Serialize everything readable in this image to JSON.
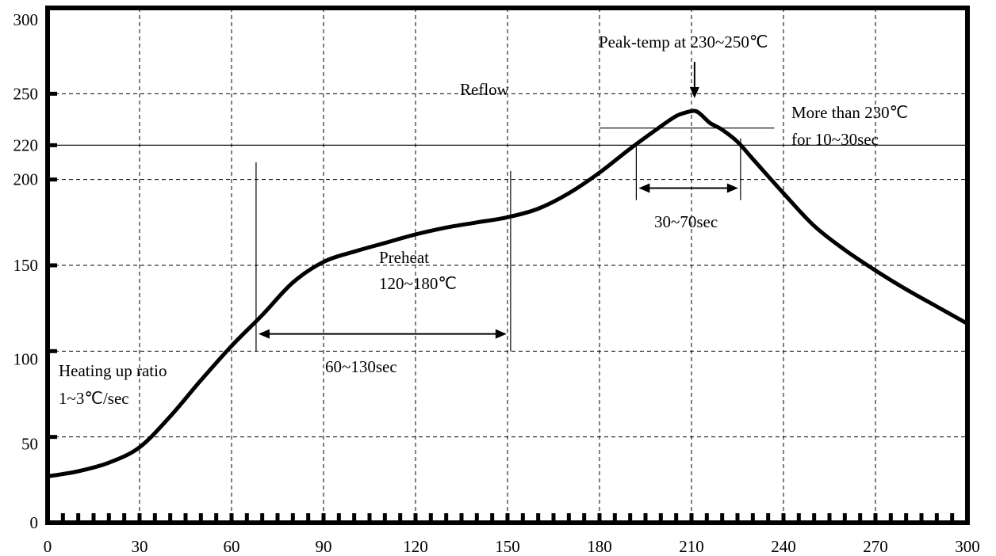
{
  "chart_data": {
    "type": "line",
    "title": "",
    "xlabel": "",
    "ylabel": "",
    "xlim": [
      0,
      300
    ],
    "ylim": [
      0,
      300
    ],
    "x_ticks": [
      0,
      30,
      60,
      90,
      120,
      150,
      180,
      210,
      240,
      270,
      300
    ],
    "y_ticks": [
      0,
      50,
      100,
      150,
      200,
      220,
      250,
      300
    ],
    "grid": true,
    "series": [
      {
        "x": [
          0,
          10,
          20,
          30,
          40,
          50,
          60,
          70,
          80,
          90,
          100,
          110,
          120,
          130,
          140,
          150,
          160,
          170,
          180,
          190,
          200,
          205,
          208,
          211,
          213,
          216,
          220,
          225,
          230,
          240,
          250,
          260,
          270,
          280,
          290,
          300
        ],
        "y": [
          27,
          30,
          35,
          44,
          62,
          83,
          103,
          121,
          140,
          152,
          158,
          163,
          168,
          172,
          175,
          178,
          183,
          192,
          204,
          218,
          231,
          237,
          239,
          240,
          238,
          233,
          229,
          222,
          212,
          192,
          173,
          159,
          147,
          136,
          126,
          116
        ]
      }
    ],
    "reference_lines": {
      "y220": 220,
      "y230_x_range": [
        180,
        237
      ],
      "v_preheat_start": 68,
      "v_preheat_end": 151,
      "v_reflow_start": 192,
      "v_reflow_end": 226
    },
    "annotations": {
      "peak_label": "Peak-temp at 230~250℃",
      "reflow_label": "Reflow",
      "more_than_line1": "More than 230℃",
      "more_than_line2": "for 10~30sec",
      "dwell_label": "30~70sec",
      "preheat_line1": "Preheat",
      "preheat_line2": "120~180℃",
      "preheat_time_label": "60~130sec",
      "heating_line1": "Heating up ratio",
      "heating_line2": "1~3℃/sec"
    }
  }
}
